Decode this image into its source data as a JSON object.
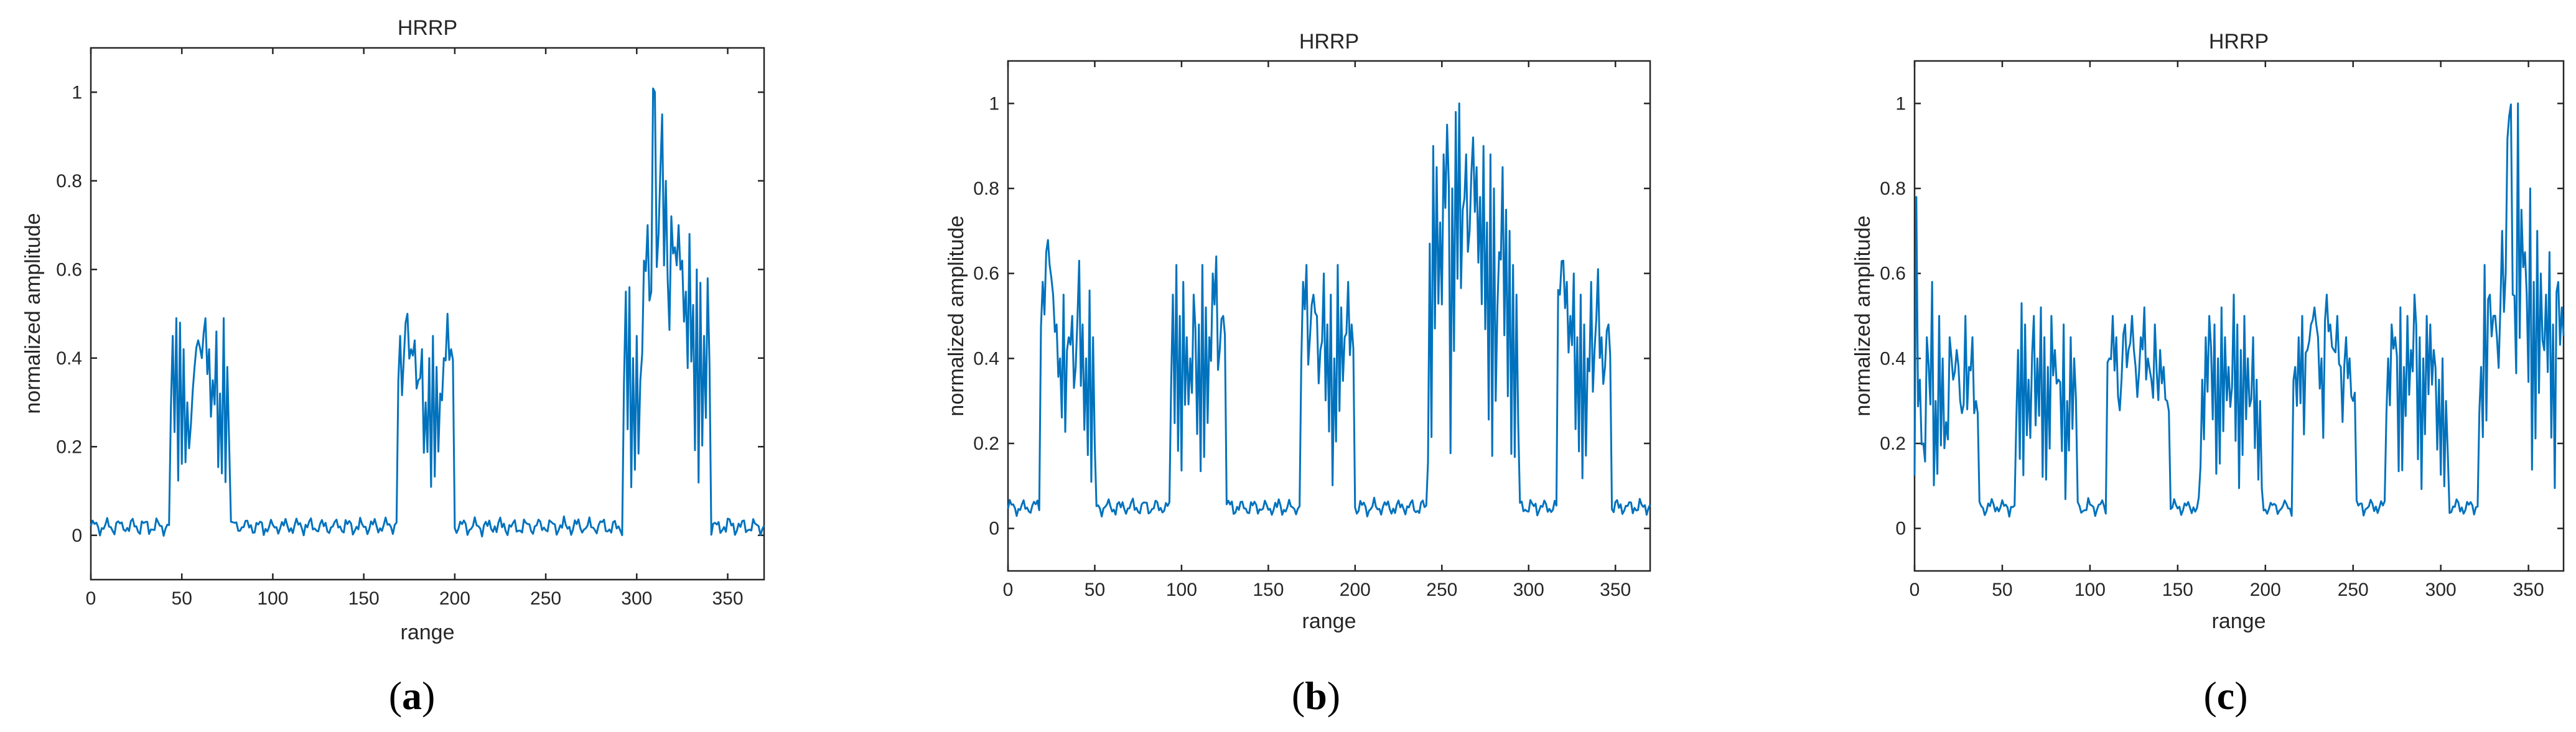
{
  "colors": {
    "line": "#0072BD",
    "axes": "#262626",
    "background": "#ffffff"
  },
  "chart_data": [
    {
      "type": "line",
      "title": "HRRP",
      "xlabel": "range",
      "ylabel": "normalized amplitude",
      "caption": "a",
      "xlim": [
        0,
        370
      ],
      "ylim": [
        -0.1,
        1.1
      ],
      "xticks": [
        0,
        50,
        100,
        150,
        200,
        250,
        300,
        350
      ],
      "yticks": [
        0,
        0.2,
        0.4,
        0.6,
        0.8,
        1
      ],
      "ytick_labels": [
        "0",
        "0.2",
        "0.4",
        "0.6",
        "0.8",
        "1"
      ],
      "baseline": 0.02,
      "clusters": [
        {
          "start": 44,
          "end": 76,
          "peaks": [
            0.45,
            0.49,
            0.48,
            0.42,
            0.3,
            0.25,
            0.38,
            0.44,
            0.4,
            0.49,
            0.42,
            0.35,
            0.46,
            0.32,
            0.49,
            0.38
          ]
        },
        {
          "start": 169,
          "end": 199,
          "peaks": [
            0.45,
            0.4,
            0.5,
            0.42,
            0.44,
            0.35,
            0.42,
            0.3,
            0.4,
            0.45,
            0.38,
            0.32,
            0.4,
            0.5,
            0.42
          ]
        },
        {
          "start": 293,
          "end": 340,
          "peaks": [
            0.55,
            0.56,
            0.4,
            0.45,
            0.35,
            0.62,
            0.7,
            0.55,
            1.0,
            0.68,
            0.95,
            0.8,
            0.58,
            0.72,
            0.65,
            0.7,
            0.62,
            0.55,
            0.68,
            0.52,
            0.6,
            0.57,
            0.45,
            0.58
          ]
        }
      ],
      "series": [
        {
          "name": "HRRP"
        }
      ]
    },
    {
      "type": "line",
      "title": "HRRP",
      "xlabel": "range",
      "ylabel": "normalized amplitude",
      "caption": "b",
      "xlim": [
        0,
        370
      ],
      "ylim": [
        -0.1,
        1.1
      ],
      "xticks": [
        0,
        50,
        100,
        150,
        200,
        250,
        300,
        350
      ],
      "yticks": [
        0,
        0.2,
        0.4,
        0.6,
        0.8,
        1
      ],
      "ytick_labels": [
        "0",
        "0.2",
        "0.4",
        "0.6",
        "0.8",
        "1"
      ],
      "baseline": 0.05,
      "clusters": [
        {
          "start": 19,
          "end": 50,
          "peaks": [
            0.58,
            0.65,
            0.62,
            0.55,
            0.48,
            0.4,
            0.55,
            0.45,
            0.5,
            0.38,
            0.63,
            0.48,
            0.4,
            0.56,
            0.45
          ]
        },
        {
          "start": 94,
          "end": 125,
          "peaks": [
            0.55,
            0.62,
            0.5,
            0.58,
            0.45,
            0.4,
            0.55,
            0.48,
            0.62,
            0.52,
            0.45,
            0.6,
            0.64,
            0.42,
            0.5
          ]
        },
        {
          "start": 169,
          "end": 199,
          "peaks": [
            0.58,
            0.62,
            0.45,
            0.55,
            0.5,
            0.42,
            0.6,
            0.48,
            0.55,
            0.4,
            0.62,
            0.52,
            0.45,
            0.58,
            0.48
          ]
        },
        {
          "start": 242,
          "end": 294,
          "peaks": [
            0.67,
            0.9,
            0.85,
            0.72,
            0.88,
            0.95,
            0.8,
            0.98,
            1.0,
            0.75,
            0.88,
            0.7,
            0.92,
            0.85,
            0.78,
            0.9,
            0.72,
            0.88,
            0.8,
            0.65,
            0.85,
            0.75,
            0.7,
            0.62,
            0.55
          ]
        },
        {
          "start": 317,
          "end": 347,
          "peaks": [
            0.55,
            0.63,
            0.58,
            0.5,
            0.6,
            0.45,
            0.55,
            0.48,
            0.4,
            0.58,
            0.42,
            0.61,
            0.45,
            0.38,
            0.48
          ]
        }
      ],
      "series": [
        {
          "name": "HRRP"
        }
      ]
    },
    {
      "type": "line",
      "title": "HRRP",
      "xlabel": "range",
      "ylabel": "normalized amplitude",
      "caption": "c",
      "xlim": [
        0,
        370
      ],
      "ylim": [
        -0.1,
        1.1
      ],
      "xticks": [
        0,
        50,
        100,
        150,
        200,
        250,
        300,
        350
      ],
      "yticks": [
        0,
        0.2,
        0.4,
        0.6,
        0.8,
        1
      ],
      "ytick_labels": [
        "0",
        "0.2",
        "0.4",
        "0.6",
        "0.8",
        "1"
      ],
      "baseline": 0.05,
      "clusters": [
        {
          "start": 0,
          "end": 36,
          "peaks": [
            0.78,
            0.35,
            0.2,
            0.45,
            0.58,
            0.3,
            0.5,
            0.4,
            0.25,
            0.45,
            0.35,
            0.42,
            0.3,
            0.5,
            0.38,
            0.45,
            0.3
          ]
        },
        {
          "start": 58,
          "end": 92,
          "peaks": [
            0.42,
            0.53,
            0.48,
            0.35,
            0.5,
            0.4,
            0.52,
            0.45,
            0.38,
            0.5,
            0.42,
            0.35,
            0.48,
            0.3,
            0.45,
            0.4
          ]
        },
        {
          "start": 110,
          "end": 145,
          "peaks": [
            0.4,
            0.5,
            0.45,
            0.35,
            0.48,
            0.42,
            0.5,
            0.38,
            0.45,
            0.52,
            0.4,
            0.35,
            0.48,
            0.42,
            0.38,
            0.3
          ]
        },
        {
          "start": 163,
          "end": 198,
          "peaks": [
            0.35,
            0.45,
            0.5,
            0.48,
            0.4,
            0.52,
            0.45,
            0.38,
            0.55,
            0.48,
            0.42,
            0.5,
            0.4,
            0.45,
            0.35,
            0.3
          ]
        },
        {
          "start": 216,
          "end": 251,
          "peaks": [
            0.38,
            0.45,
            0.5,
            0.42,
            0.48,
            0.52,
            0.45,
            0.4,
            0.55,
            0.48,
            0.42,
            0.5,
            0.38,
            0.45,
            0.4,
            0.3
          ]
        },
        {
          "start": 269,
          "end": 304,
          "peaks": [
            0.4,
            0.48,
            0.45,
            0.52,
            0.38,
            0.5,
            0.42,
            0.55,
            0.45,
            0.4,
            0.5,
            0.48,
            0.42,
            0.35,
            0.4,
            0.3
          ]
        },
        {
          "start": 322,
          "end": 370,
          "peaks": [
            0.38,
            0.62,
            0.55,
            0.5,
            0.45,
            0.7,
            0.6,
            0.97,
            0.55,
            1.0,
            0.75,
            0.65,
            0.8,
            0.58,
            0.7,
            0.6,
            0.55,
            0.65,
            0.48,
            0.58,
            0.52
          ]
        }
      ],
      "series": [
        {
          "name": "HRRP"
        }
      ]
    }
  ]
}
